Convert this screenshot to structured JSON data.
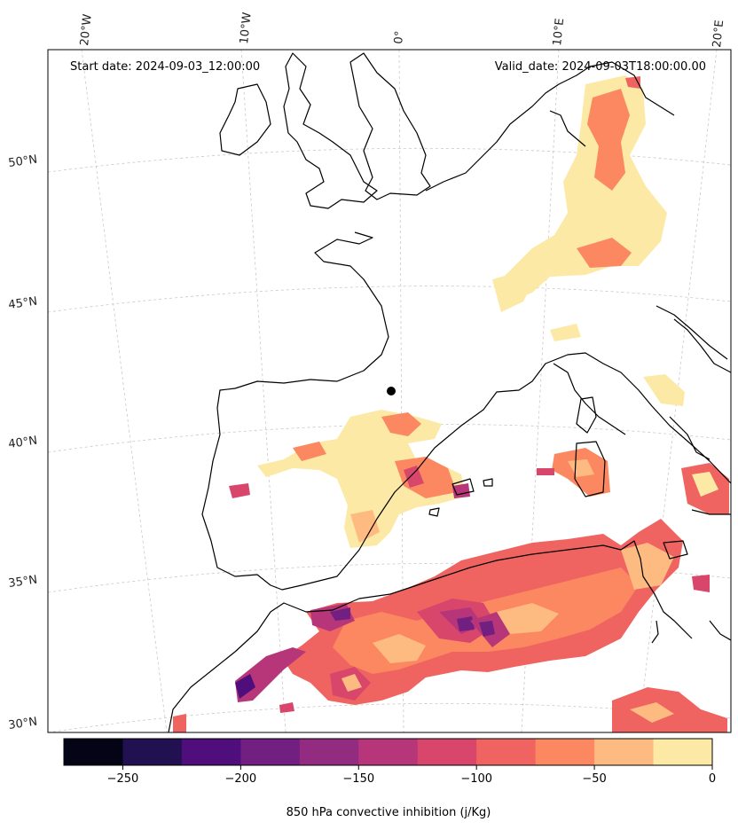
{
  "header": {
    "start_date": "Start date: 2024-09-03_12:00:00",
    "valid_date": "Valid_date: 2024-09-03T18:00:00.00"
  },
  "longitude_labels": [
    "20°W",
    "10°W",
    "0°",
    "10°E",
    "20°E"
  ],
  "latitude_labels": [
    "50°N",
    "45°N",
    "40°N",
    "35°N",
    "30°N"
  ],
  "colorbar": {
    "label": "850 hPa convective inhibition (j/Kg)",
    "tick_labels": [
      "−250",
      "−200",
      "−150",
      "−100",
      "−50",
      "0"
    ],
    "colors": [
      "#050417",
      "#221150",
      "#4f0e7c",
      "#711f81",
      "#932b80",
      "#b63679",
      "#d8466c",
      "#ef6360",
      "#fb8861",
      "#febb81",
      "#fce9a6"
    ],
    "range": [
      -275,
      0
    ],
    "step": 25
  },
  "palette": {
    "weak": "#fce9a6",
    "light": "#febb81",
    "moderate": "#fb8861",
    "strong": "#ef6360",
    "very_strong": "#d8466c",
    "intense": "#b63679",
    "extreme": "#711f81"
  }
}
